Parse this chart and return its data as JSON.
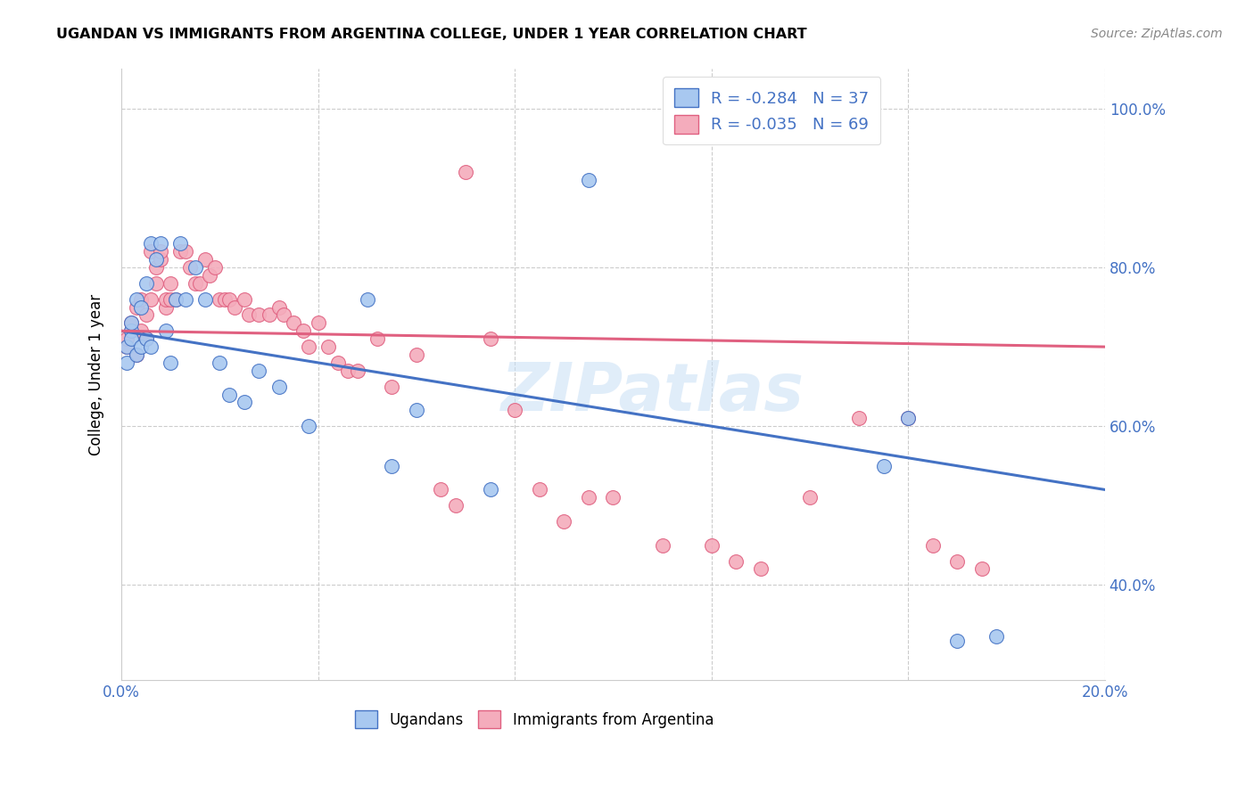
{
  "title": "UGANDAN VS IMMIGRANTS FROM ARGENTINA COLLEGE, UNDER 1 YEAR CORRELATION CHART",
  "source": "Source: ZipAtlas.com",
  "ylabel": "College, Under 1 year",
  "legend_label1": "Ugandans",
  "legend_label2": "Immigrants from Argentina",
  "R1": -0.284,
  "N1": 37,
  "R2": -0.035,
  "N2": 69,
  "color1": "#A8C8F0",
  "color2": "#F4ACBC",
  "trendline_color1": "#4472C4",
  "trendline_color2": "#E06080",
  "xlim": [
    0.0,
    0.2
  ],
  "ylim": [
    0.28,
    1.05
  ],
  "xticks": [
    0.0,
    0.04,
    0.08,
    0.12,
    0.16,
    0.2
  ],
  "xtick_labels": [
    "0.0%",
    "",
    "",
    "",
    "",
    "20.0%"
  ],
  "ytick_labels_right": [
    "100.0%",
    "80.0%",
    "60.0%",
    "40.0%"
  ],
  "ytick_positions_right": [
    1.0,
    0.8,
    0.6,
    0.4
  ],
  "watermark": "ZIPatlas",
  "trendline_ug_x0": 0.0,
  "trendline_ug_y0": 0.72,
  "trendline_ug_x1": 0.2,
  "trendline_ug_y1": 0.52,
  "trendline_ar_x0": 0.0,
  "trendline_ar_y0": 0.72,
  "trendline_ar_x1": 0.2,
  "trendline_ar_y1": 0.7,
  "ugandans_x": [
    0.001,
    0.001,
    0.002,
    0.002,
    0.002,
    0.003,
    0.003,
    0.004,
    0.004,
    0.005,
    0.005,
    0.006,
    0.006,
    0.007,
    0.008,
    0.009,
    0.01,
    0.011,
    0.012,
    0.013,
    0.015,
    0.017,
    0.02,
    0.022,
    0.025,
    0.028,
    0.032,
    0.038,
    0.05,
    0.055,
    0.06,
    0.075,
    0.095,
    0.155,
    0.16,
    0.17,
    0.178
  ],
  "ugandans_y": [
    0.7,
    0.68,
    0.72,
    0.71,
    0.73,
    0.69,
    0.76,
    0.7,
    0.75,
    0.71,
    0.78,
    0.83,
    0.7,
    0.81,
    0.83,
    0.72,
    0.68,
    0.76,
    0.83,
    0.76,
    0.8,
    0.76,
    0.68,
    0.64,
    0.63,
    0.67,
    0.65,
    0.6,
    0.76,
    0.55,
    0.62,
    0.52,
    0.91,
    0.55,
    0.61,
    0.33,
    0.335
  ],
  "argentina_x": [
    0.001,
    0.001,
    0.002,
    0.002,
    0.003,
    0.003,
    0.004,
    0.004,
    0.005,
    0.005,
    0.006,
    0.006,
    0.007,
    0.007,
    0.008,
    0.008,
    0.009,
    0.009,
    0.01,
    0.01,
    0.011,
    0.012,
    0.013,
    0.014,
    0.015,
    0.016,
    0.017,
    0.018,
    0.019,
    0.02,
    0.021,
    0.022,
    0.023,
    0.025,
    0.026,
    0.028,
    0.03,
    0.032,
    0.033,
    0.035,
    0.037,
    0.038,
    0.04,
    0.042,
    0.044,
    0.046,
    0.048,
    0.052,
    0.055,
    0.06,
    0.065,
    0.068,
    0.07,
    0.075,
    0.08,
    0.085,
    0.09,
    0.095,
    0.1,
    0.11,
    0.12,
    0.125,
    0.13,
    0.14,
    0.15,
    0.16,
    0.165,
    0.17,
    0.175
  ],
  "argentina_y": [
    0.7,
    0.71,
    0.72,
    0.73,
    0.75,
    0.69,
    0.76,
    0.72,
    0.71,
    0.74,
    0.82,
    0.76,
    0.78,
    0.8,
    0.81,
    0.82,
    0.75,
    0.76,
    0.78,
    0.76,
    0.76,
    0.82,
    0.82,
    0.8,
    0.78,
    0.78,
    0.81,
    0.79,
    0.8,
    0.76,
    0.76,
    0.76,
    0.75,
    0.76,
    0.74,
    0.74,
    0.74,
    0.75,
    0.74,
    0.73,
    0.72,
    0.7,
    0.73,
    0.7,
    0.68,
    0.67,
    0.67,
    0.71,
    0.65,
    0.69,
    0.52,
    0.5,
    0.92,
    0.71,
    0.62,
    0.52,
    0.48,
    0.51,
    0.51,
    0.45,
    0.45,
    0.43,
    0.42,
    0.51,
    0.61,
    0.61,
    0.45,
    0.43,
    0.42
  ]
}
